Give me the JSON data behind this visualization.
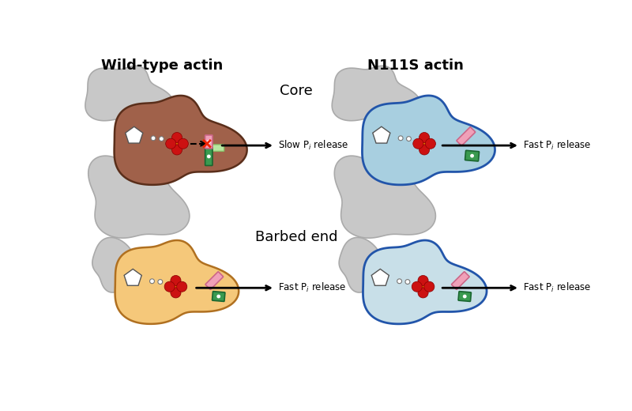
{
  "bg_color": "#ffffff",
  "title_left": "Wild-type actin",
  "title_right": "N111S actin",
  "label_core": "Core",
  "label_barbed": "Barbed end",
  "gray_color": "#c8c8c8",
  "gray_edge": "#aaaaaa",
  "brown_color": "#a0614a",
  "blue_color_top": "#a8cfe0",
  "blue_color_bot": "#c8dfe8",
  "orange_color": "#f5c87a",
  "pink_color": "#f0a0b8",
  "green_dark": "#3a9a50",
  "green_light": "#b8e8a0",
  "orange_ball": "#f08000",
  "red_ball": "#cc1111",
  "arrow_color": "#000000"
}
